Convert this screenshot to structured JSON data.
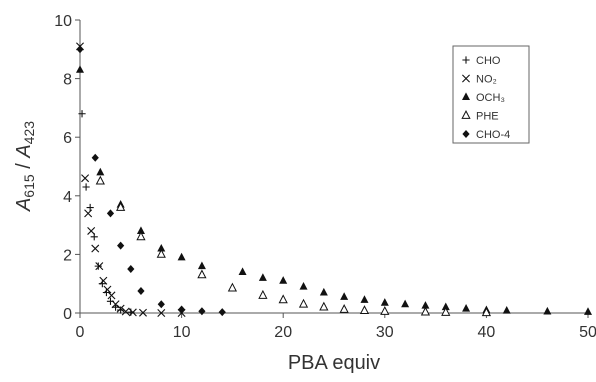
{
  "chart_data": {
    "type": "scatter",
    "xlabel": "PBA equiv",
    "ylabel": {
      "base": "A",
      "sub1": "615",
      "sep": " / ",
      "base2": "A",
      "sub2": "423"
    },
    "xlim": [
      0,
      50
    ],
    "ylim": [
      0,
      10
    ],
    "x_ticks": [
      0,
      10,
      20,
      30,
      40,
      50
    ],
    "y_ticks": [
      0,
      2,
      4,
      6,
      8,
      10
    ],
    "x_tick_labels": [
      "0",
      "10",
      "20",
      "30",
      "40",
      "50"
    ],
    "y_tick_labels": [
      "0",
      "2",
      "4",
      "6",
      "8",
      "10"
    ],
    "grid": false,
    "legend_position": "top-right",
    "series": [
      {
        "name": "CHO",
        "marker": "plus",
        "points": [
          [
            0.2,
            6.8
          ],
          [
            0.6,
            4.3
          ],
          [
            1.0,
            3.6
          ],
          [
            1.4,
            2.6
          ],
          [
            1.8,
            1.6
          ],
          [
            2.2,
            1.0
          ],
          [
            2.6,
            0.7
          ],
          [
            3.0,
            0.4
          ],
          [
            3.5,
            0.2
          ],
          [
            4.0,
            0.1
          ],
          [
            5.0,
            0.03
          ]
        ]
      },
      {
        "name": "NO₂",
        "marker": "x",
        "points": [
          [
            0.0,
            9.1
          ],
          [
            0.5,
            4.6
          ],
          [
            0.8,
            3.4
          ],
          [
            1.1,
            2.8
          ],
          [
            1.5,
            2.2
          ],
          [
            1.9,
            1.6
          ],
          [
            2.3,
            1.1
          ],
          [
            2.7,
            0.8
          ],
          [
            3.1,
            0.6
          ],
          [
            3.5,
            0.3
          ],
          [
            4.0,
            0.15
          ],
          [
            4.5,
            0.05
          ],
          [
            5.2,
            0.02
          ],
          [
            6.2,
            0.01
          ],
          [
            8.0,
            0.0
          ],
          [
            10.0,
            0.0
          ]
        ]
      },
      {
        "name": "OCH₃",
        "marker": "triangle-filled",
        "points": [
          [
            0.0,
            8.3
          ],
          [
            2.0,
            4.8
          ],
          [
            4.0,
            3.7
          ],
          [
            6.0,
            2.8
          ],
          [
            8.0,
            2.2
          ],
          [
            10.0,
            1.9
          ],
          [
            12.0,
            1.6
          ],
          [
            16.0,
            1.4
          ],
          [
            18.0,
            1.2
          ],
          [
            20.0,
            1.1
          ],
          [
            22.0,
            0.9
          ],
          [
            24.0,
            0.7
          ],
          [
            26.0,
            0.55
          ],
          [
            28.0,
            0.45
          ],
          [
            30.0,
            0.35
          ],
          [
            32.0,
            0.3
          ],
          [
            34.0,
            0.25
          ],
          [
            36.0,
            0.2
          ],
          [
            38.0,
            0.15
          ],
          [
            40.0,
            0.1
          ],
          [
            42.0,
            0.08
          ],
          [
            46.0,
            0.05
          ],
          [
            50.0,
            0.04
          ]
        ]
      },
      {
        "name": "PHE",
        "marker": "triangle-open",
        "points": [
          [
            2.0,
            4.5
          ],
          [
            4.0,
            3.6
          ],
          [
            6.0,
            2.6
          ],
          [
            8.0,
            2.0
          ],
          [
            12.0,
            1.3
          ],
          [
            15.0,
            0.85
          ],
          [
            18.0,
            0.6
          ],
          [
            20.0,
            0.45
          ],
          [
            22.0,
            0.3
          ],
          [
            24.0,
            0.2
          ],
          [
            26.0,
            0.12
          ],
          [
            28.0,
            0.08
          ],
          [
            30.0,
            0.05
          ],
          [
            34.0,
            0.03
          ],
          [
            36.0,
            0.02
          ],
          [
            40.0,
            0.01
          ]
        ]
      },
      {
        "name": "CHO-4",
        "marker": "diamond",
        "points": [
          [
            0.0,
            9.0
          ],
          [
            1.5,
            5.3
          ],
          [
            3.0,
            3.4
          ],
          [
            4.0,
            2.3
          ],
          [
            5.0,
            1.5
          ],
          [
            6.0,
            0.75
          ],
          [
            8.0,
            0.3
          ],
          [
            10.0,
            0.12
          ],
          [
            12.0,
            0.06
          ],
          [
            14.0,
            0.03
          ]
        ]
      }
    ],
    "colors": {
      "marker": "#111111",
      "axis": "#555555",
      "text": "#333333"
    }
  }
}
